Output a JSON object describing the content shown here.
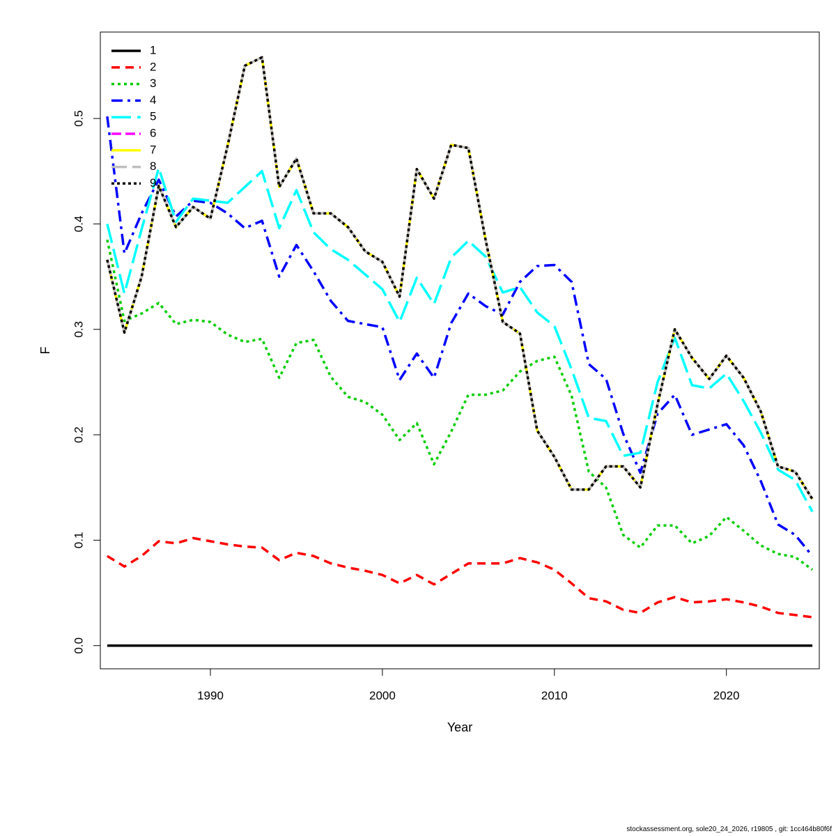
{
  "chart_data": {
    "type": "line",
    "xlabel": "Year",
    "ylabel": "F",
    "xlim": [
      1983.6,
      2025.4
    ],
    "ylim": [
      -0.022,
      0.582
    ],
    "x_ticks": [
      1990,
      2000,
      2010,
      2020
    ],
    "y_ticks": [
      0.0,
      0.1,
      0.2,
      0.3,
      0.4,
      0.5
    ],
    "x_tick_labels": [
      "1990",
      "2000",
      "2010",
      "2020"
    ],
    "y_tick_labels": [
      "0.0",
      "0.1",
      "0.2",
      "0.3",
      "0.4",
      "0.5"
    ],
    "legend_position": "top-left",
    "x": [
      1984,
      1985,
      1986,
      1987,
      1988,
      1989,
      1990,
      1991,
      1992,
      1993,
      1994,
      1995,
      1996,
      1997,
      1998,
      1999,
      2000,
      2001,
      2002,
      2003,
      2004,
      2005,
      2006,
      2007,
      2008,
      2009,
      2010,
      2011,
      2012,
      2013,
      2014,
      2015,
      2016,
      2017,
      2018,
      2019,
      2020,
      2021,
      2022,
      2023,
      2024,
      2025
    ],
    "series": [
      {
        "name": "1",
        "color": "#000000",
        "dash": "solid",
        "width": 3.5,
        "values": [
          0,
          0,
          0,
          0,
          0,
          0,
          0,
          0,
          0,
          0,
          0,
          0,
          0,
          0,
          0,
          0,
          0,
          0,
          0,
          0,
          0,
          0,
          0,
          0,
          0,
          0,
          0,
          0,
          0,
          0,
          0,
          0,
          0,
          0,
          0,
          0,
          0,
          0,
          0,
          0,
          0,
          0
        ]
      },
      {
        "name": "2",
        "color": "#ff0000",
        "dash": "12,8",
        "width": 3.5,
        "values": [
          0.085,
          0.075,
          0.085,
          0.099,
          0.097,
          0.102,
          0.099,
          0.096,
          0.094,
          0.093,
          0.081,
          0.088,
          0.085,
          0.078,
          0.074,
          0.071,
          0.067,
          0.059,
          0.067,
          0.058,
          0.068,
          0.078,
          0.078,
          0.078,
          0.083,
          0.079,
          0.072,
          0.059,
          0.045,
          0.042,
          0.034,
          0.031,
          0.041,
          0.046,
          0.041,
          0.042,
          0.044,
          0.041,
          0.037,
          0.031,
          0.029,
          0.027
        ]
      },
      {
        "name": "3",
        "color": "#00cd00",
        "dash": "4,5",
        "width": 3.5,
        "values": [
          0.385,
          0.308,
          0.315,
          0.325,
          0.305,
          0.309,
          0.307,
          0.295,
          0.288,
          0.291,
          0.254,
          0.287,
          0.29,
          0.255,
          0.236,
          0.231,
          0.219,
          0.195,
          0.211,
          0.172,
          0.203,
          0.238,
          0.238,
          0.242,
          0.26,
          0.27,
          0.274,
          0.237,
          0.165,
          0.15,
          0.105,
          0.093,
          0.114,
          0.114,
          0.097,
          0.104,
          0.122,
          0.109,
          0.095,
          0.087,
          0.084,
          0.072
        ]
      },
      {
        "name": "4",
        "color": "#0000ff",
        "dash": "16,7,4,7",
        "width": 3.5,
        "values": [
          0.502,
          0.372,
          0.41,
          0.442,
          0.407,
          0.422,
          0.42,
          0.41,
          0.396,
          0.403,
          0.35,
          0.38,
          0.355,
          0.327,
          0.308,
          0.305,
          0.302,
          0.252,
          0.277,
          0.254,
          0.306,
          0.334,
          0.322,
          0.314,
          0.345,
          0.36,
          0.361,
          0.345,
          0.267,
          0.253,
          0.201,
          0.164,
          0.22,
          0.238,
          0.2,
          0.205,
          0.21,
          0.19,
          0.156,
          0.115,
          0.105,
          0.085
        ]
      },
      {
        "name": "5",
        "color": "#00ffff",
        "dash": "28,9",
        "width": 3.5,
        "values": [
          0.4,
          0.334,
          0.395,
          0.453,
          0.402,
          0.424,
          0.422,
          0.42,
          0.435,
          0.45,
          0.396,
          0.432,
          0.392,
          0.376,
          0.366,
          0.352,
          0.338,
          0.307,
          0.349,
          0.324,
          0.368,
          0.384,
          0.369,
          0.335,
          0.34,
          0.316,
          0.303,
          0.262,
          0.216,
          0.213,
          0.18,
          0.183,
          0.25,
          0.292,
          0.247,
          0.244,
          0.258,
          0.232,
          0.202,
          0.167,
          0.157,
          0.127
        ]
      },
      {
        "name": "6",
        "color": "#ff00ff",
        "dash": "14,6",
        "width": 3.5,
        "values": [
          0.366,
          0.297,
          0.35,
          0.436,
          0.397,
          0.416,
          0.405,
          0.474,
          0.55,
          0.558,
          0.435,
          0.462,
          0.41,
          0.41,
          0.397,
          0.374,
          0.364,
          0.331,
          0.452,
          0.424,
          0.475,
          0.472,
          0.385,
          0.307,
          0.296,
          0.204,
          0.179,
          0.148,
          0.148,
          0.17,
          0.17,
          0.15,
          0.229,
          0.3,
          0.273,
          0.253,
          0.275,
          0.254,
          0.222,
          0.17,
          0.165,
          0.139
        ]
      },
      {
        "name": "7",
        "color": "#ffff00",
        "dash": "solid",
        "width": 3.5,
        "values": [
          0.366,
          0.297,
          0.35,
          0.436,
          0.397,
          0.416,
          0.405,
          0.474,
          0.55,
          0.558,
          0.435,
          0.462,
          0.41,
          0.41,
          0.397,
          0.374,
          0.364,
          0.331,
          0.452,
          0.424,
          0.475,
          0.472,
          0.385,
          0.307,
          0.296,
          0.204,
          0.179,
          0.148,
          0.148,
          0.17,
          0.17,
          0.15,
          0.229,
          0.3,
          0.273,
          0.253,
          0.275,
          0.254,
          0.222,
          0.17,
          0.165,
          0.139
        ]
      },
      {
        "name": "8",
        "color": "#bebebe",
        "dash": "22,8",
        "width": 3.5,
        "values": [
          0.366,
          0.297,
          0.35,
          0.436,
          0.397,
          0.416,
          0.405,
          0.474,
          0.55,
          0.558,
          0.435,
          0.462,
          0.41,
          0.41,
          0.397,
          0.374,
          0.364,
          0.331,
          0.452,
          0.424,
          0.475,
          0.472,
          0.385,
          0.307,
          0.296,
          0.204,
          0.179,
          0.148,
          0.148,
          0.17,
          0.17,
          0.15,
          0.229,
          0.3,
          0.273,
          0.253,
          0.275,
          0.254,
          0.222,
          0.17,
          0.165,
          0.139
        ]
      },
      {
        "name": "9",
        "color": "#000000",
        "dash": "4,4",
        "width": 3.5,
        "values": [
          0.366,
          0.297,
          0.35,
          0.436,
          0.397,
          0.416,
          0.405,
          0.474,
          0.55,
          0.558,
          0.435,
          0.462,
          0.41,
          0.41,
          0.397,
          0.374,
          0.364,
          0.331,
          0.452,
          0.424,
          0.475,
          0.472,
          0.385,
          0.307,
          0.296,
          0.204,
          0.179,
          0.148,
          0.148,
          0.17,
          0.17,
          0.15,
          0.229,
          0.3,
          0.273,
          0.253,
          0.275,
          0.254,
          0.222,
          0.17,
          0.165,
          0.139
        ]
      }
    ]
  },
  "footer": {
    "text": "stockassessment.org, sole20_24_2026, r19805 , git: 1cc464b80f6f"
  }
}
